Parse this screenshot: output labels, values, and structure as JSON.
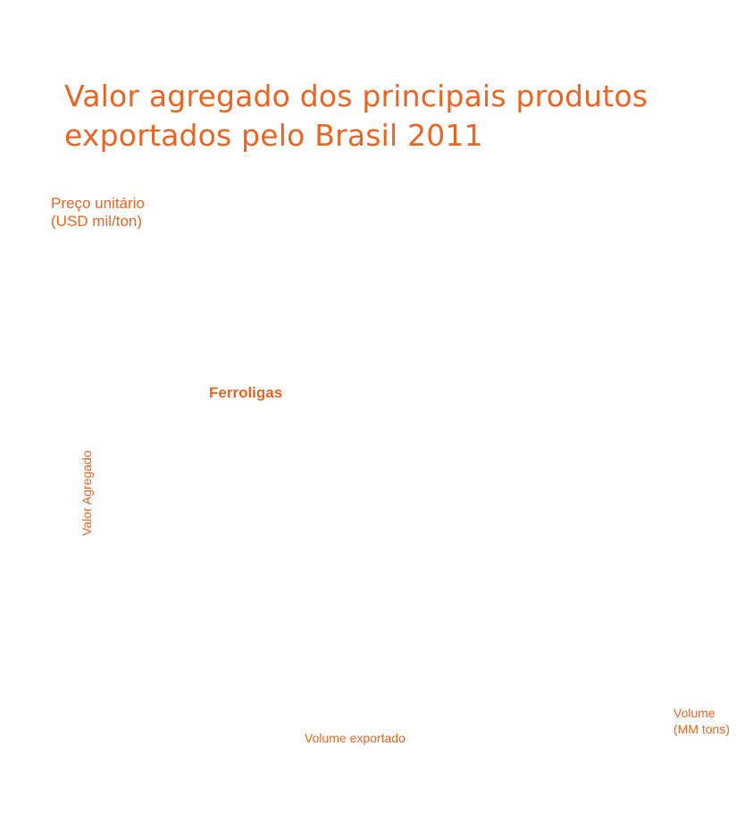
{
  "theme": {
    "accent": "#e86524"
  },
  "chart_data": {
    "type": "scatter",
    "title": "Valor agregado dos principais produtos exportados pelo Brasil 2011",
    "ylabel": "Preço unitário\n(USD mil/ton)",
    "xlabel": "Volume\n(MM tons)",
    "y_annotation": "Valor Agregado",
    "x_annotation": "Volume exportado",
    "grid": false,
    "legend": "none",
    "series": [
      {
        "points": [
          {
            "label": "Ferroligas"
          }
        ]
      }
    ]
  }
}
